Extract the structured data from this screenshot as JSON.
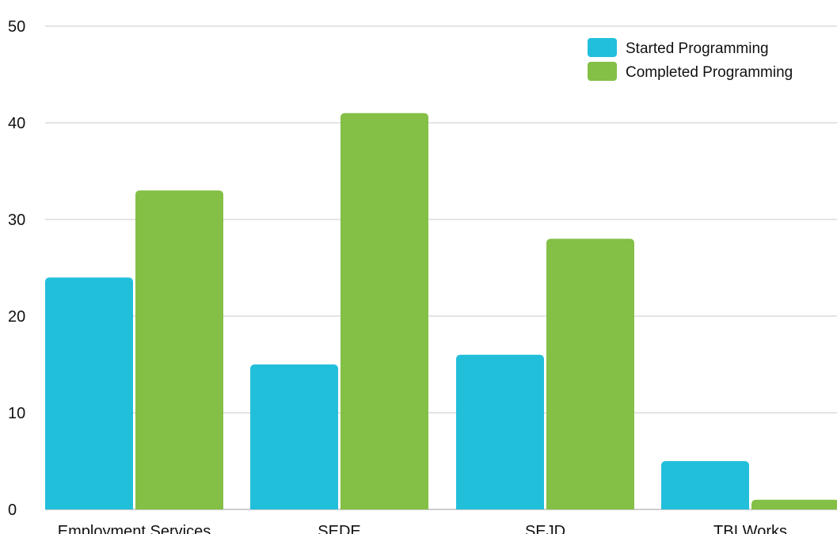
{
  "chart_data": {
    "type": "bar",
    "categories": [
      "Employment Services",
      "SEDE",
      "SEJD",
      "TBI Works"
    ],
    "series": [
      {
        "name": "Started Programming",
        "color": "#22bfdb",
        "values": [
          24,
          15,
          16,
          5
        ]
      },
      {
        "name": "Completed Programming",
        "color": "#84bf46",
        "values": [
          33,
          41,
          28,
          1
        ]
      }
    ],
    "ylim": [
      0,
      50
    ],
    "yticks": [
      0,
      10,
      20,
      30,
      40,
      50
    ],
    "grid": true,
    "legend": "top-right",
    "title": "",
    "xlabel": "",
    "ylabel": ""
  }
}
